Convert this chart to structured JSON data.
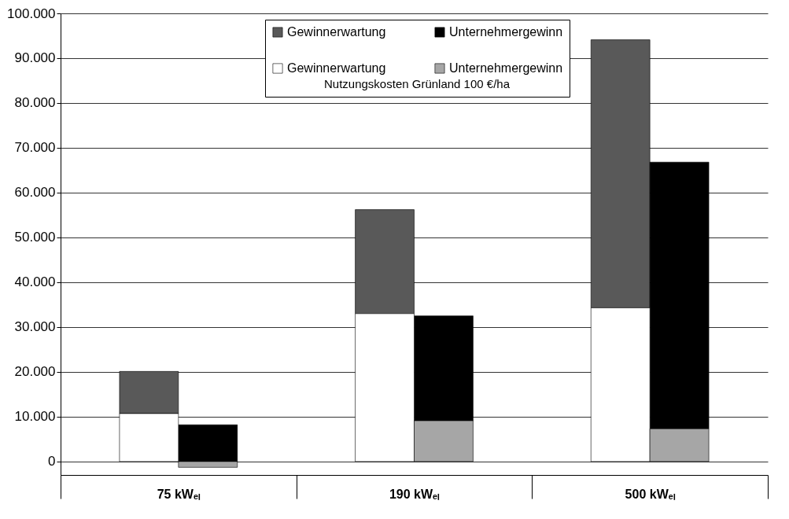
{
  "chart_data": {
    "type": "bar",
    "categories": [
      "75 kWₑₗ",
      "190 kWₑₗ",
      "500 kWₑₗ"
    ],
    "series": [
      {
        "name": "Gewinnerwartung",
        "color": "#595959",
        "values": [
          9400,
          23200,
          59800
        ],
        "base": [
          10700,
          33000,
          34300
        ]
      },
      {
        "name": "Unternehmergewinn",
        "color": "#000000",
        "values": [
          8200,
          23400,
          59500
        ],
        "base": [
          0,
          9100,
          7300
        ]
      },
      {
        "name": "Gewinnerwartung",
        "color": "#ffffff",
        "values": [
          10700,
          33000,
          34300
        ]
      },
      {
        "name": "Unternehmergewinn",
        "color": "#a6a6a6",
        "values": [
          -1300,
          9100,
          7300
        ]
      }
    ],
    "legend_title": "Nutzungskosten Grünland 100 €/ha",
    "ylim": [
      -3000,
      100000
    ],
    "yticks": [
      {
        "value": 0,
        "label": "0"
      },
      {
        "value": 10000,
        "label": "10.000"
      },
      {
        "value": 20000,
        "label": "20.000"
      },
      {
        "value": 30000,
        "label": "30.000"
      },
      {
        "value": 40000,
        "label": "40.000"
      },
      {
        "value": 50000,
        "label": "50.000"
      },
      {
        "value": 60000,
        "label": "60.000"
      },
      {
        "value": 70000,
        "label": "70.000"
      },
      {
        "value": 80000,
        "label": "80.000"
      },
      {
        "value": 90000,
        "label": "90.000"
      },
      {
        "value": 100000,
        "label": "100.000"
      }
    ],
    "grid": "y",
    "legend": "top"
  }
}
